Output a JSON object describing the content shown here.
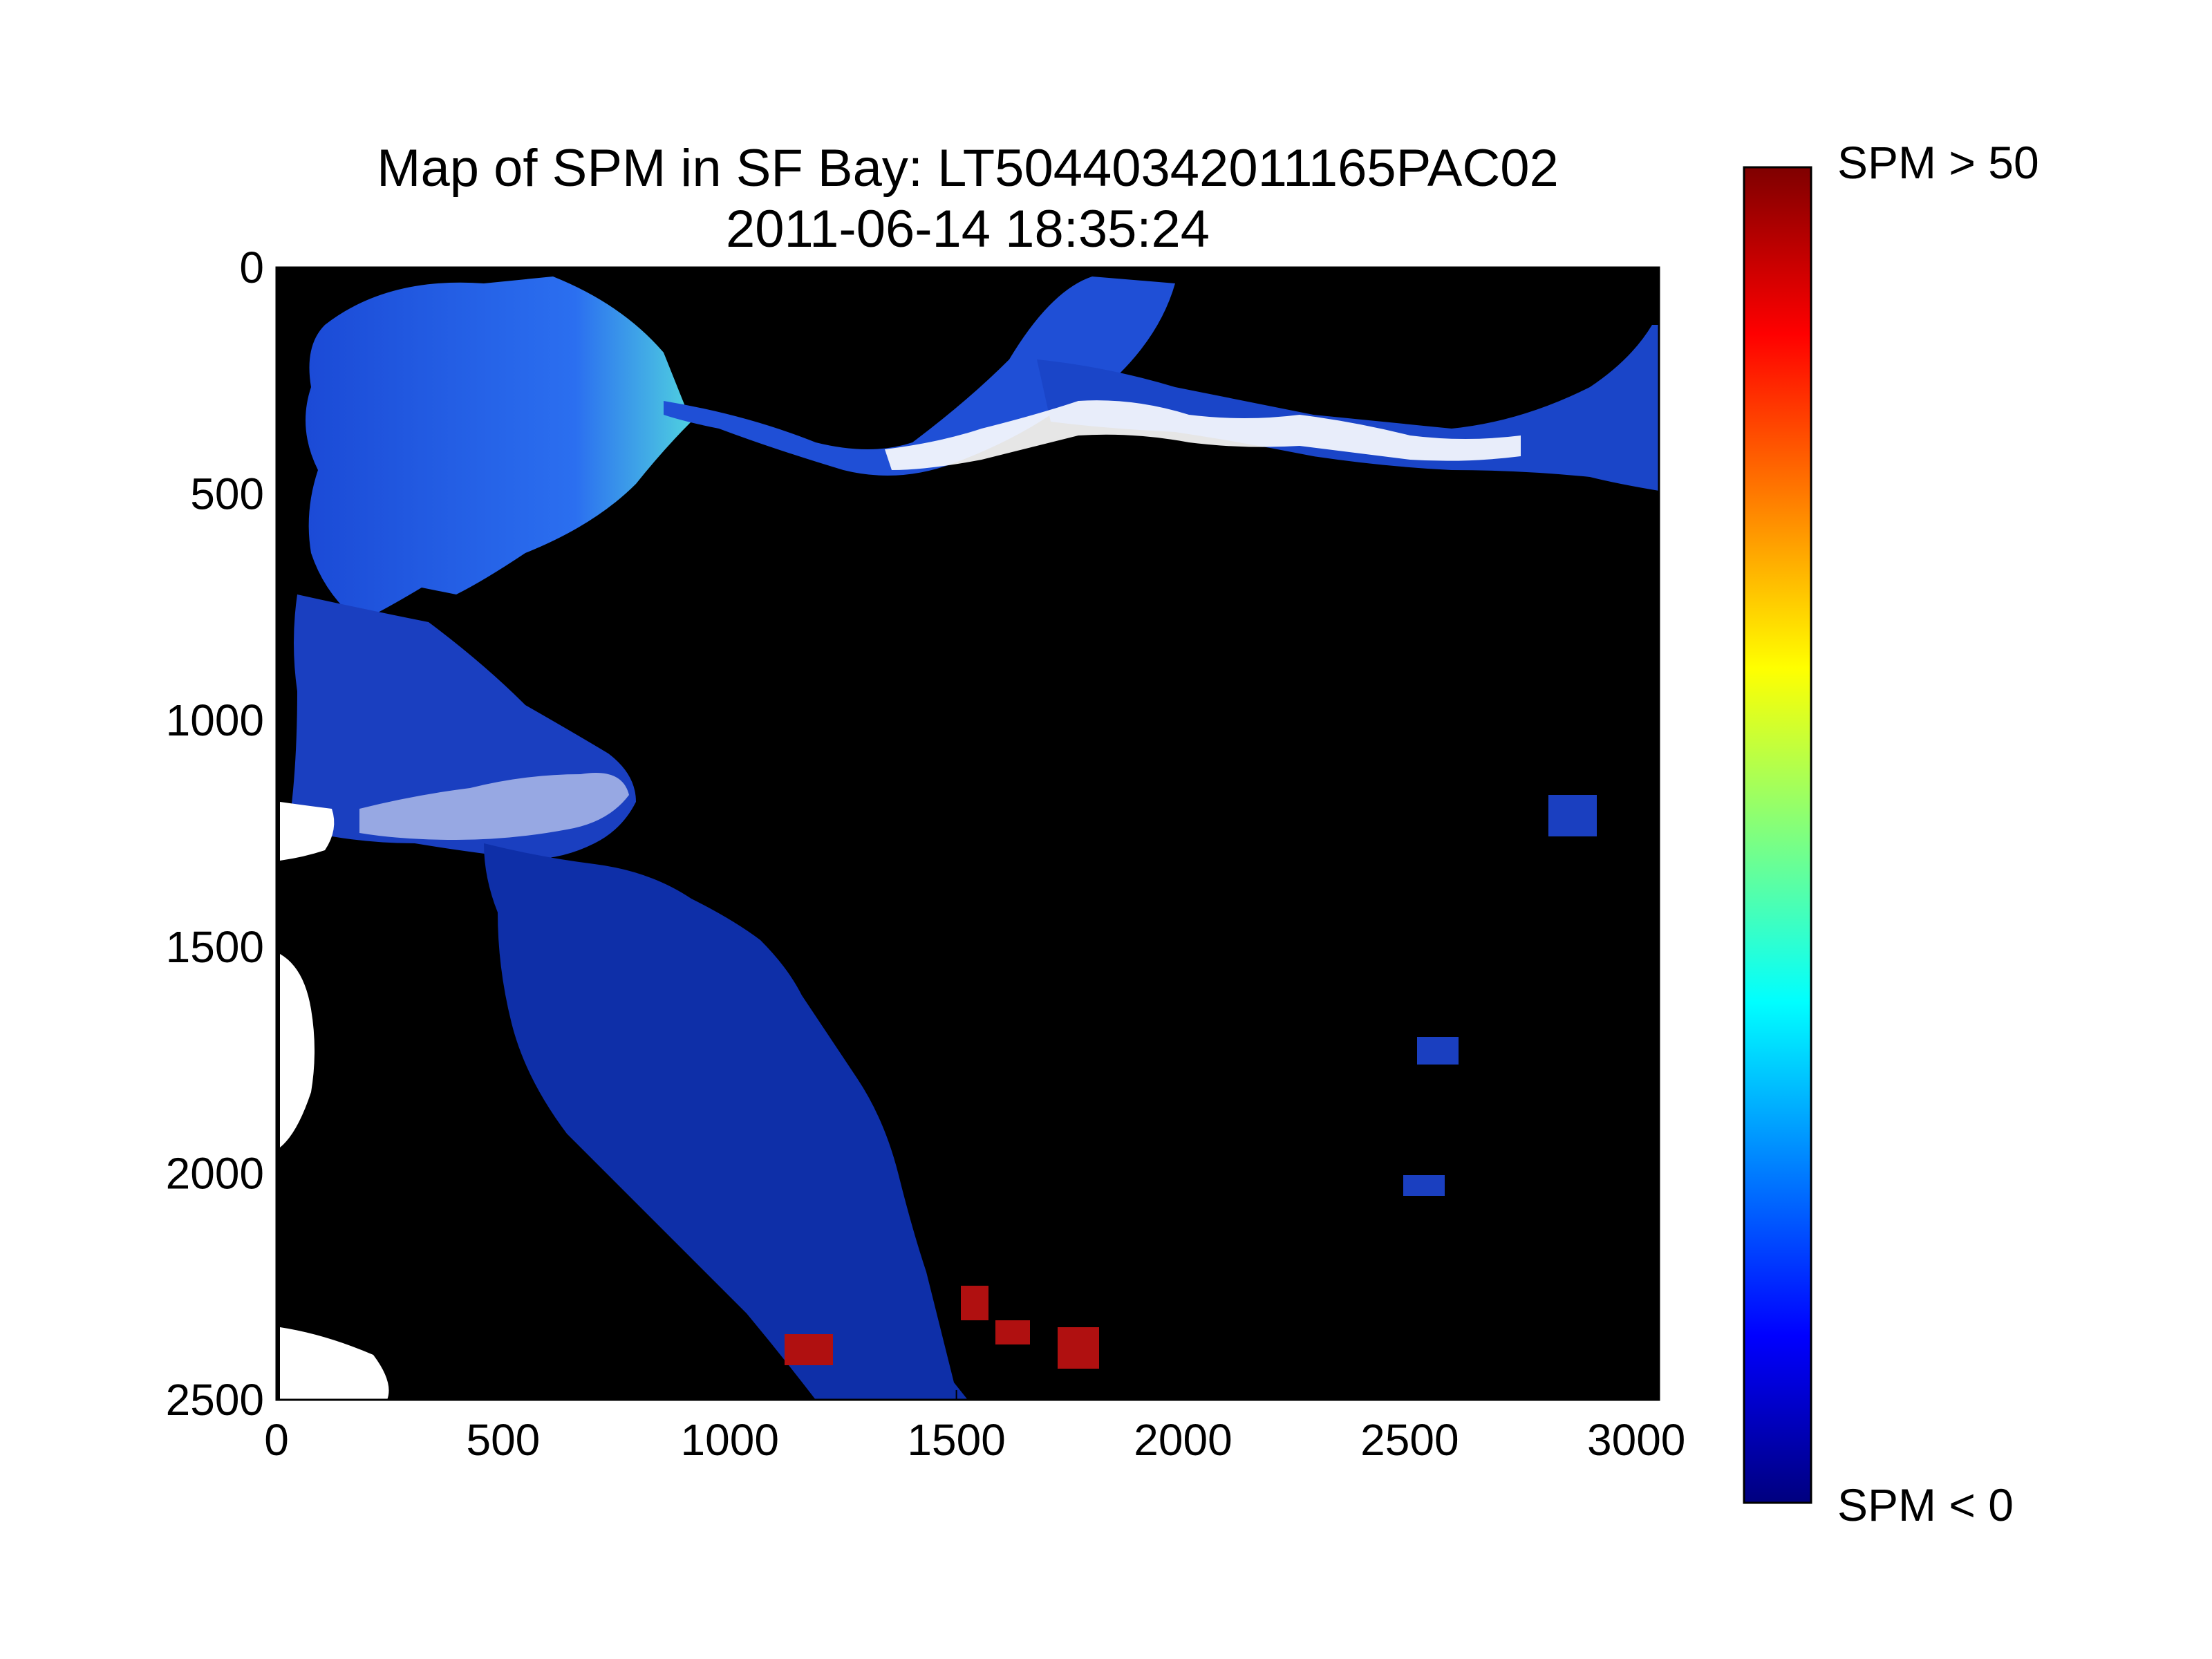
{
  "figure": {
    "title_line_1": "Map of SPM in SF Bay: LT50440342011165PAC02",
    "title_line_2": "2011-06-14 18:35:24"
  },
  "colorbar": {
    "max_label": "SPM > 50",
    "min_label": "SPM < 0",
    "colormap": [
      "#00007f",
      "#0000ff",
      "#007fff",
      "#00ffff",
      "#7fff7f",
      "#ffff00",
      "#ff7f00",
      "#ff0000",
      "#7f0000"
    ]
  },
  "chart_data": {
    "type": "heatmap",
    "x_ticks": [
      "0",
      "500",
      "1000",
      "1500",
      "2000",
      "2500",
      "3000"
    ],
    "y_ticks": [
      "0",
      "500",
      "1000",
      "1500",
      "2000",
      "2500"
    ],
    "xlim": [
      0,
      3050
    ],
    "ylim": [
      2500,
      0
    ],
    "background_color": "#000000",
    "water_color": "#0d2a9e",
    "high_value_color": "#ffffff",
    "hotspot_color": "#b01010"
  }
}
